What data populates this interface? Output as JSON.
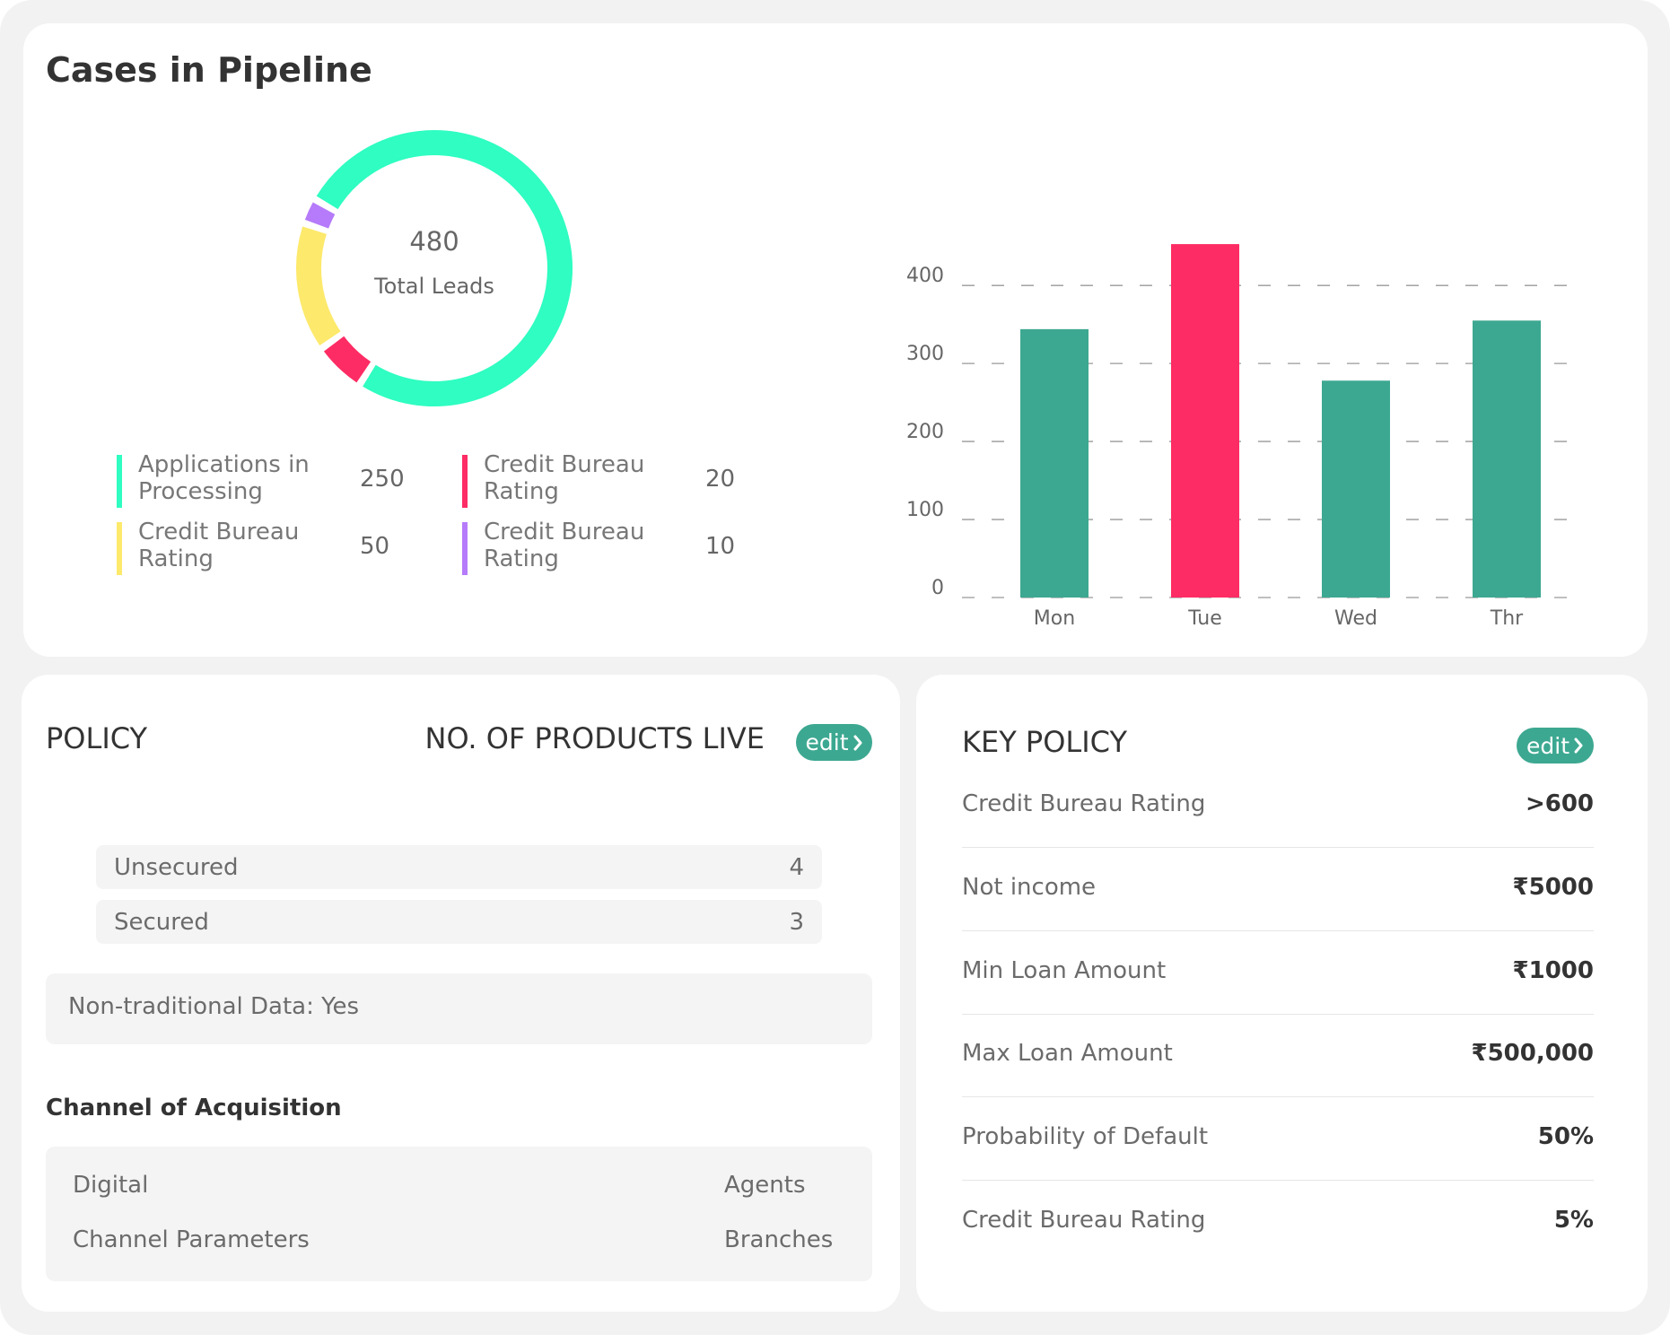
{
  "header": {
    "title": "Cases in Pipeline"
  },
  "chart_data": [
    {
      "type": "donut",
      "center_value": 480,
      "center_label": "Total Leads",
      "categories": [
        "Applications in Processing",
        "Credit Bureau Rating",
        "Credit Bureau Rating",
        "Credit Bureau Rating"
      ],
      "values": [
        250,
        20,
        50,
        10
      ],
      "colors": [
        "#2ffdc1",
        "#fe2c64",
        "#fde96b",
        "#b57bfa"
      ]
    },
    {
      "type": "bar",
      "categories": [
        "Mon",
        "Tue",
        "Wed",
        "Thr"
      ],
      "values": [
        344,
        453,
        278,
        355
      ],
      "colors": [
        "#3da891",
        "#fe2c64",
        "#3da891",
        "#3da891"
      ],
      "ylim": [
        0,
        460
      ],
      "yticks": [
        0,
        100,
        200,
        300,
        400
      ],
      "grid": true
    }
  ],
  "policy": {
    "title": "POLICY",
    "products_title": "NO. OF PRODUCTS LIVE",
    "edit": "edit",
    "products": [
      {
        "name": "Unsecured",
        "count": 4
      },
      {
        "name": "Secured",
        "count": 3
      }
    ],
    "non_traditional": "Non-traditional Data: Yes",
    "channel_title": "Channel of Acquisition",
    "channels": [
      [
        "Digital",
        "Agents"
      ],
      [
        "Channel Parameters",
        "Branches"
      ]
    ]
  },
  "key_policy": {
    "title": "KEY POLICY",
    "edit": "edit",
    "rows": [
      {
        "label": "Credit Bureau Rating",
        "value": ">600"
      },
      {
        "label": "Not income",
        "value": "₹5000"
      },
      {
        "label": "Min Loan Amount",
        "value": "₹1000"
      },
      {
        "label": "Max Loan Amount",
        "value": "₹500,000"
      },
      {
        "label": "Probability of Default",
        "value": "50%"
      },
      {
        "label": "Credit Bureau Rating",
        "value": "5%"
      }
    ]
  }
}
